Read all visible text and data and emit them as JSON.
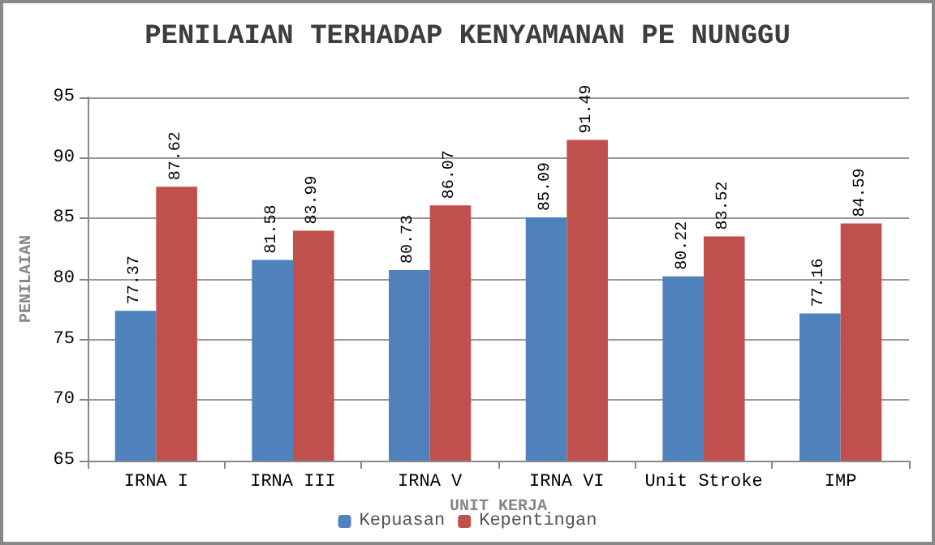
{
  "chart_data": {
    "type": "bar",
    "title": "PENILAIAN TERHADAP KENYAMANAN PE NUNGGU",
    "xlabel": "UNIT KERJA",
    "ylabel": "PENILAIAN",
    "categories": [
      "IRNA I",
      "IRNA III",
      "IRNA V",
      "IRNA VI",
      "Unit Stroke",
      "IMP"
    ],
    "series": [
      {
        "name": "Kepuasan",
        "color": "#4f81bd",
        "values": [
          77.37,
          81.58,
          80.73,
          85.09,
          80.22,
          77.16
        ]
      },
      {
        "name": "Kepentingan",
        "color": "#c0504d",
        "values": [
          87.62,
          83.99,
          86.07,
          91.49,
          83.52,
          84.59
        ]
      }
    ],
    "ylim": [
      65,
      95
    ],
    "yticks": [
      65,
      70,
      75,
      80,
      85,
      90,
      95
    ],
    "grid": "y",
    "legend": "bottom",
    "data_labels": true
  }
}
